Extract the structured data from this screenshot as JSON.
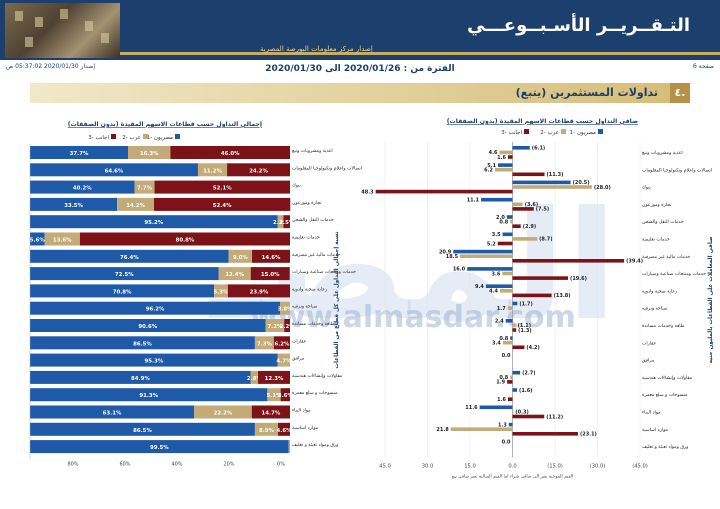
{
  "header": {
    "title": "التـقــريــر الأسـبــوعـــي",
    "subtitle": "إصدار مركز معلومات البورصة المصرية"
  },
  "meta": {
    "page": "صفحة 6",
    "issue": "إصدار 2020/01/30 05:37:02 ص"
  },
  "period": "الفترة من : 2020/01/26 الى 2020/01/30",
  "section": {
    "number": "٤.",
    "title": "تداولات المستثمرين (يتبع)"
  },
  "watermark": {
    "text": "المصـ",
    "url": "www.almasdar.com"
  },
  "colors": {
    "egyptian": "#1e5aa8",
    "arab": "#c2ab78",
    "foreign": "#7b1318",
    "navy": "#1d3f6d",
    "gold": "#b5914a"
  },
  "chart_data": [
    {
      "type": "bar",
      "title": "صافي التداول حسب قطاعات الاسهم المقيدة (بدون الصفقات)",
      "ylabel": "صافي المعاملات على القطاعات بالمليون جنيه",
      "footnote": "القيم الموجبة تعبر الى صافي شراء اما القيم السالبة تعبر صافي بيع",
      "legend": [
        "1- مصريون",
        "2- عرب",
        "3- اجانب"
      ],
      "xlim": [
        -45,
        45
      ],
      "tick_labels": [
        "45.0",
        "30.0",
        "15.0",
        "0.0",
        "(15.0)",
        "(30.0)",
        "(45.0)"
      ],
      "sectors": [
        {
          "name": "اغذية ومشروبات وتبغ",
          "values": [
            -6.1,
            4.6,
            1.6
          ],
          "labels": [
            "(6.1)",
            "4.6",
            "1.6"
          ]
        },
        {
          "name": "اتصالات واعلام وتكنولوجيا المعلومات",
          "values": [
            5.1,
            6.2,
            -11.3
          ],
          "labels": [
            "5.1",
            "6.2",
            "(11.3)"
          ]
        },
        {
          "name": "بنوك",
          "values": [
            -20.5,
            -28.0,
            48.3
          ],
          "labels": [
            "(20.5)",
            "(28.0)",
            "48.3"
          ]
        },
        {
          "name": "تجارة وموزعون",
          "values": [
            11.1,
            -3.6,
            -7.5
          ],
          "labels": [
            "11.1",
            "(3.6)",
            "(7.5)"
          ]
        },
        {
          "name": "خدمات النقل والشحن",
          "values": [
            2.0,
            0.8,
            -2.9
          ],
          "labels": [
            "2.0",
            "0.8",
            "(2.9)"
          ]
        },
        {
          "name": "خدمات تعليمية",
          "values": [
            3.5,
            -8.7,
            5.2
          ],
          "labels": [
            "3.5",
            "(8.7)",
            "5.2"
          ]
        },
        {
          "name": "خدمات مالية غير مصرفية",
          "values": [
            20.9,
            18.5,
            -39.4
          ],
          "labels": [
            "20.9",
            "18.5",
            "(39.4)"
          ]
        },
        {
          "name": "خدمات ومنتجات صناعية وسيارات",
          "values": [
            16.0,
            3.6,
            -19.6
          ],
          "labels": [
            "16.0",
            "3.6",
            "(19.6)"
          ]
        },
        {
          "name": "رعاية صحية وادوية",
          "values": [
            9.4,
            4.4,
            -13.8
          ],
          "labels": [
            "9.4",
            "4.4",
            "(13.8)"
          ]
        },
        {
          "name": "سياحة وترفيه",
          "values": [
            -1.7,
            1.7,
            0.0
          ],
          "labels": [
            "(1.7)",
            "1.7",
            ""
          ]
        },
        {
          "name": "طاقة وخدمات مساندة",
          "values": [
            2.4,
            -1.1,
            -1.3
          ],
          "labels": [
            "2.4",
            "(1.1)",
            "(1.3)"
          ]
        },
        {
          "name": "عقارات",
          "values": [
            0.8,
            3.4,
            -4.2
          ],
          "labels": [
            "0.8",
            "3.4",
            "(4.2)"
          ]
        },
        {
          "name": "مرافق",
          "values": [
            0.0,
            0.0,
            0.0
          ],
          "labels": [
            "0.0",
            "",
            ""
          ]
        },
        {
          "name": "مقاولات وإنشاءات هندسية",
          "values": [
            -2.7,
            0.8,
            1.9
          ],
          "labels": [
            "(2.7)",
            "0.8",
            "1.9"
          ]
        },
        {
          "name": "منسوجات و سلع معمرة",
          "values": [
            -1.6,
            0.0,
            1.6
          ],
          "labels": [
            "(1.6)",
            "",
            "1.6"
          ]
        },
        {
          "name": "مواد البناء",
          "values": [
            11.6,
            -0.3,
            -11.2
          ],
          "labels": [
            "11.6",
            "(0.3)",
            "(11.2)"
          ]
        },
        {
          "name": "موارد اساسية",
          "values": [
            1.3,
            21.8,
            -23.1
          ],
          "labels": [
            "1.3",
            "21.8",
            "(23.1)"
          ]
        },
        {
          "name": "ورق ومواد تعبئة و تغليف",
          "values": [
            0.0,
            0.0,
            0.0
          ],
          "labels": [
            "0.0",
            "",
            ""
          ]
        }
      ]
    },
    {
      "type": "bar",
      "title": "إجمالي التداول حسب قطاعات الاسهم المقيدة (بدون الصفقات)",
      "ylabel": "نسبة إجمالي التداول على كل قطاع من القطاعات",
      "legend": [
        "1- مصريون",
        "2- عرب",
        "3- اجانب"
      ],
      "tick_labels": [
        "80%",
        "60%",
        "40%",
        "20%",
        "0%"
      ],
      "sectors": [
        {
          "name": "اغذية ومشروبات وتبغ",
          "values": [
            37.7,
            16.3,
            46.0
          ]
        },
        {
          "name": "اتصالات واعلام وتكنولوجيا المعلومات",
          "values": [
            64.6,
            11.2,
            24.2
          ]
        },
        {
          "name": "بنوك",
          "values": [
            40.2,
            7.7,
            52.1
          ]
        },
        {
          "name": "تجارة وموزعون",
          "values": [
            33.5,
            14.2,
            52.4
          ]
        },
        {
          "name": "خدمات النقل والشحن",
          "values": [
            95.2,
            2.3,
            2.5
          ]
        },
        {
          "name": "خدمات تعليمية",
          "values": [
            5.6,
            13.6,
            80.8
          ]
        },
        {
          "name": "خدمات مالية غير مصرفية",
          "values": [
            76.4,
            9.0,
            14.6
          ]
        },
        {
          "name": "خدمات ومنتجات صناعية وسيارات",
          "values": [
            72.5,
            12.4,
            15.0
          ]
        },
        {
          "name": "رعاية صحية وادوية",
          "values": [
            70.8,
            5.3,
            23.9
          ]
        },
        {
          "name": "سياحة وترفيه",
          "values": [
            96.2,
            3.8,
            0.0
          ]
        },
        {
          "name": "طاقة وخدمات مساندة",
          "values": [
            90.6,
            7.2,
            2.2
          ]
        },
        {
          "name": "عقارات",
          "values": [
            86.5,
            7.3,
            6.2
          ]
        },
        {
          "name": "مرافق",
          "values": [
            95.3,
            4.7,
            0.0
          ]
        },
        {
          "name": "مقاولات وإنشاءات هندسية",
          "values": [
            84.9,
            2.8,
            12.3
          ]
        },
        {
          "name": "منسوجات و سلع معمرة",
          "values": [
            91.3,
            5.1,
            3.6
          ]
        },
        {
          "name": "مواد البناء",
          "values": [
            63.1,
            22.2,
            14.7
          ]
        },
        {
          "name": "موارد اساسية",
          "values": [
            86.5,
            8.9,
            4.6
          ]
        },
        {
          "name": "ورق ومواد تعبئة و تغليف",
          "values": [
            99.5,
            0.5,
            0.0
          ]
        }
      ]
    }
  ]
}
